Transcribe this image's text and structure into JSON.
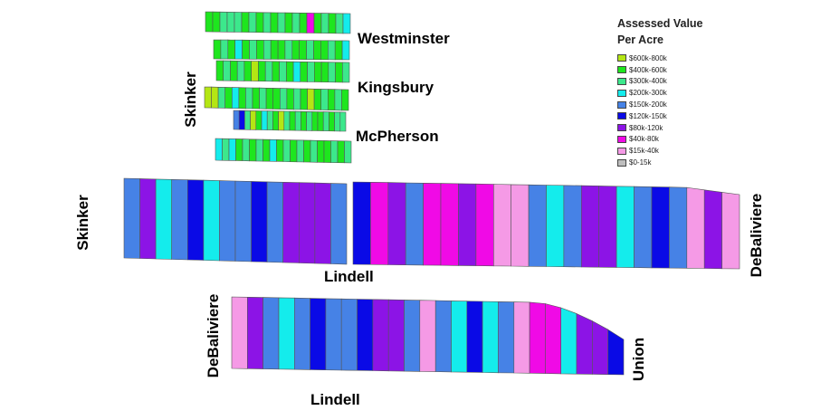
{
  "legend": {
    "title_line1": "Assessed Value",
    "title_line2": "Per Acre",
    "items": [
      {
        "label": "$600k-800k",
        "color": "#b4e614"
      },
      {
        "label": "$400k-600k",
        "color": "#1ee61e"
      },
      {
        "label": "$300k-400k",
        "color": "#3ce88c"
      },
      {
        "label": "$200k-300k",
        "color": "#14ecec"
      },
      {
        "label": "$150k-200k",
        "color": "#4682e6"
      },
      {
        "label": "$120k-150k",
        "color": "#0a0ae6"
      },
      {
        "label": "$80k-120k",
        "color": "#8c14e6"
      },
      {
        "label": "$40k-80k",
        "color": "#f00ae6"
      },
      {
        "label": "$15k-40k",
        "color": "#f59ae6"
      },
      {
        "label": "$0-15k",
        "color": "#bebebe"
      }
    ]
  },
  "streets": {
    "westminster": "Westminster",
    "kingsbury": "Kingsbury",
    "mcpherson": "McPherson",
    "skinker_top": "Skinker",
    "skinker_mid": "Skinker",
    "lindell_mid": "Lindell",
    "debaliviere_right": "DeBaliviere",
    "debaliviere_bottom": "DeBaliviere",
    "union": "Union",
    "lindell_bottom": "Lindell"
  },
  "blocks": {
    "north_row1": [
      1,
      1,
      2,
      2,
      2,
      1,
      2,
      1,
      2,
      1,
      2,
      1,
      2,
      1,
      7,
      1,
      2,
      1,
      2,
      3
    ],
    "north_row2": [
      1,
      2,
      1,
      3,
      1,
      2,
      1,
      2,
      1,
      1,
      2,
      1,
      1,
      2,
      1,
      1,
      2,
      1,
      3
    ],
    "north_row3": [
      1,
      2,
      1,
      2,
      1,
      0,
      1,
      2,
      1,
      2,
      1,
      3,
      1,
      2,
      1,
      1,
      2,
      1,
      2
    ],
    "north_row4": [
      0,
      0,
      2,
      1,
      3,
      1,
      2,
      1,
      2,
      1,
      1,
      2,
      1,
      2,
      1,
      0,
      1,
      2,
      1,
      2,
      1
    ],
    "north_row5": [
      4,
      5,
      2,
      0,
      1,
      3,
      2,
      1,
      0,
      2,
      1,
      2,
      1,
      2,
      1,
      1,
      2,
      1,
      2,
      2
    ],
    "north_row6": [
      3,
      2,
      3,
      1,
      2,
      1,
      2,
      1,
      3,
      1,
      2,
      1,
      2,
      1,
      2,
      1,
      1,
      2,
      1,
      2
    ],
    "mid_left": [
      4,
      6,
      3,
      4,
      5,
      3,
      4,
      4,
      5,
      4,
      6,
      6,
      6,
      4
    ],
    "mid_right": [
      5,
      7,
      6,
      4,
      7,
      7,
      6,
      7,
      8,
      8,
      4,
      3,
      4,
      6,
      6,
      3,
      4,
      5,
      4,
      8,
      6,
      8
    ],
    "bottom": [
      8,
      6,
      4,
      3,
      4,
      5,
      4,
      4,
      5,
      6,
      6,
      4,
      8,
      4,
      3,
      5,
      3,
      4,
      8,
      7,
      7,
      3,
      6,
      6,
      5
    ]
  }
}
